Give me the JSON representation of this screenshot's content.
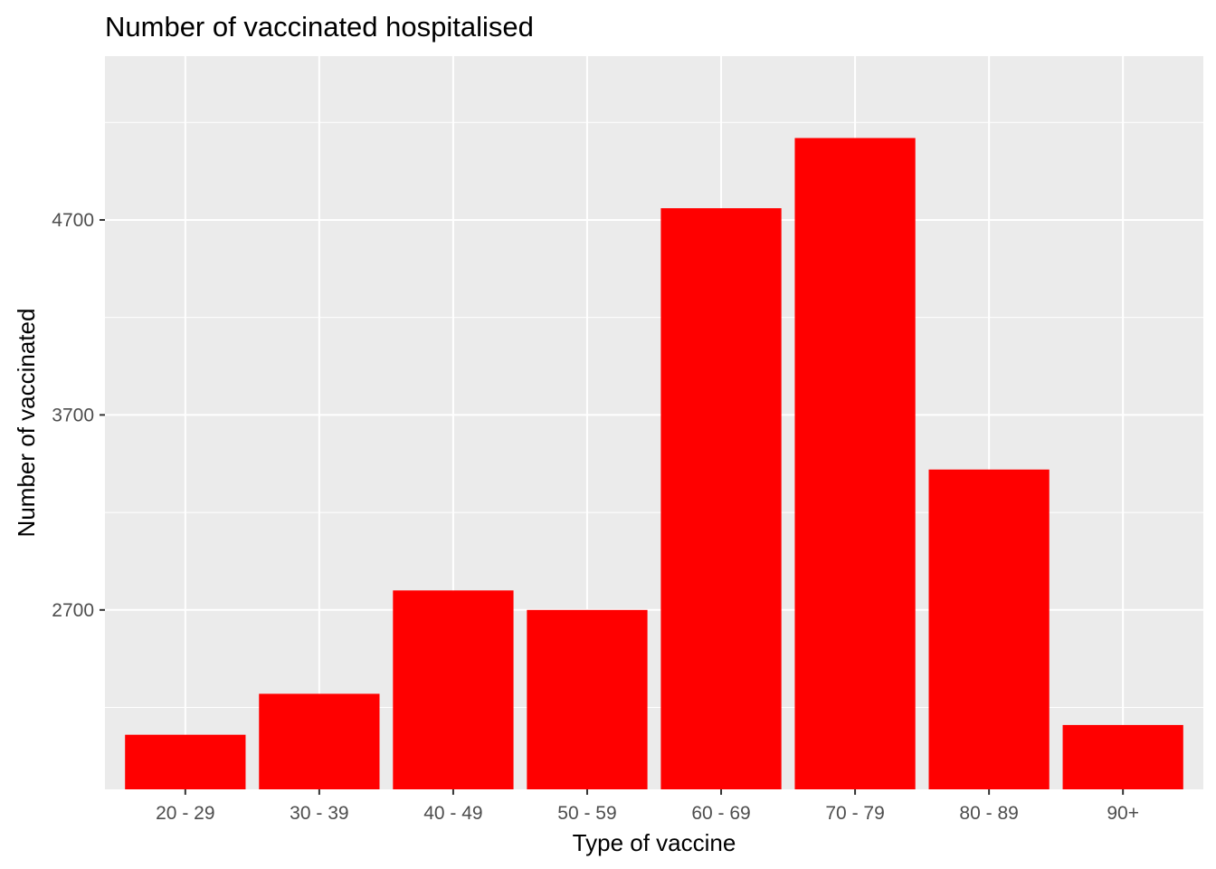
{
  "chart_data": {
    "type": "bar",
    "title": "Number of vaccinated hospitalised",
    "xlabel": "Type of vaccine",
    "ylabel": "Number of vaccinated",
    "categories": [
      "20 - 29",
      "30 - 39",
      "40 - 49",
      "50 - 59",
      "60 - 69",
      "70 - 79",
      "80 - 89",
      "90+"
    ],
    "values": [
      2060,
      2270,
      2800,
      2700,
      4760,
      5120,
      3420,
      2110
    ],
    "ylim": [
      1780,
      5540
    ],
    "yticks": [
      2700,
      3700,
      4700
    ],
    "ytick_labels": [
      "2700",
      "3700",
      "4700"
    ],
    "grid": true,
    "legend": "none",
    "colors": {
      "bar": "#ff0000",
      "panel_background": "#ebebeb",
      "grid": "#ffffff",
      "tick_text": "#4d4d4d",
      "tick_mark": "#333333"
    }
  }
}
